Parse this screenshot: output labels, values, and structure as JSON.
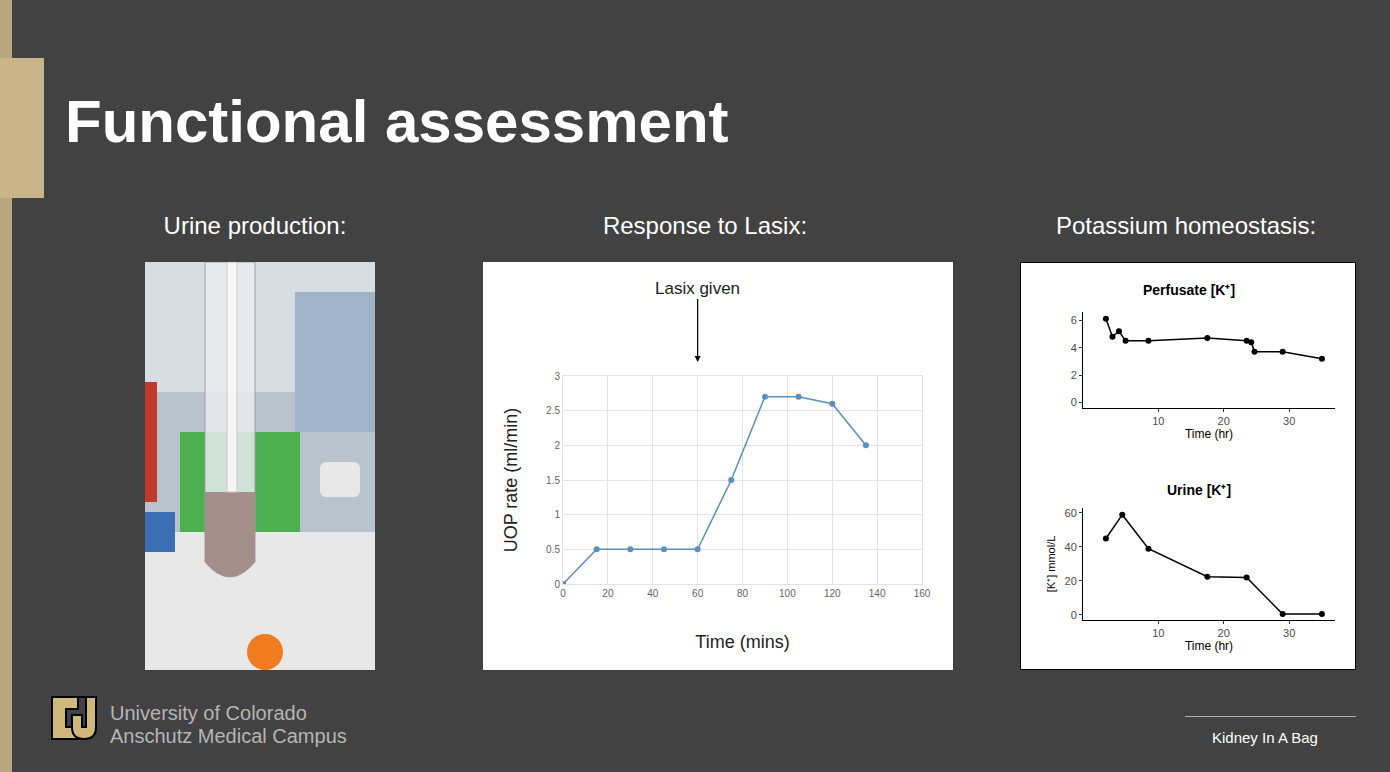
{
  "slide": {
    "title": "Functional assessment",
    "panels": [
      "Urine production:",
      "Response to Lasix:",
      "Potassium homeostasis:"
    ],
    "institution": [
      "University of Colorado",
      "Anschutz Medical Campus"
    ],
    "footer": "Kidney In A Bag"
  },
  "chart_data": [
    {
      "type": "line",
      "xlabel": "Time (mins)",
      "ylabel": "UOP rate (ml/min)",
      "x": [
        0,
        15,
        30,
        45,
        60,
        75,
        90,
        105,
        120,
        135
      ],
      "values": [
        0,
        0.5,
        0.5,
        0.5,
        0.5,
        1.5,
        2.7,
        2.7,
        2.6,
        2.0
      ],
      "color": "#5b8fbc",
      "marker": "circle",
      "line_style": "solid",
      "xlim": [
        0,
        160
      ],
      "xticks": [
        0,
        20,
        40,
        60,
        80,
        100,
        120,
        140,
        160
      ],
      "ylim": [
        0,
        3
      ],
      "yticks": [
        0,
        0.5,
        1,
        1.5,
        2,
        2.5,
        3
      ],
      "grid": true,
      "annotations": [
        {
          "x": 60,
          "text": "Lasix given"
        }
      ]
    },
    {
      "type": "line",
      "title": "Perfusate [K⁺]",
      "xlabel": "Time (hr)",
      "x": [
        2,
        3,
        4,
        5,
        8.5,
        17.5,
        23.5,
        24.2,
        24.7,
        29,
        35
      ],
      "values": [
        6.1,
        4.8,
        5.2,
        4.5,
        4.5,
        4.7,
        4.5,
        4.4,
        3.7,
        3.7,
        3.2
      ],
      "color": "#000000",
      "marker": "circle",
      "line_style": "solid",
      "xlim": [
        -1.5,
        37
      ],
      "xticks": [
        10,
        20,
        30
      ],
      "ylim": [
        -0.4,
        6.6
      ],
      "yticks": [
        0,
        2,
        4,
        6
      ],
      "grid": false
    },
    {
      "type": "line",
      "title": "Urine [K⁺]",
      "xlabel": "Time (hr)",
      "ylabel": "[K⁺] mmol/L",
      "x": [
        2,
        4.5,
        8.5,
        17.5,
        23.5,
        29,
        35
      ],
      "values": [
        45,
        59,
        39,
        22.5,
        22,
        0.5,
        0.5
      ],
      "color": "#000000",
      "marker": "circle",
      "line_style": "solid",
      "xlim": [
        -1.5,
        37
      ],
      "xticks": [
        10,
        20,
        30
      ],
      "ylim": [
        -3,
        63
      ],
      "yticks": [
        0,
        20,
        40,
        60
      ],
      "grid": false
    }
  ]
}
